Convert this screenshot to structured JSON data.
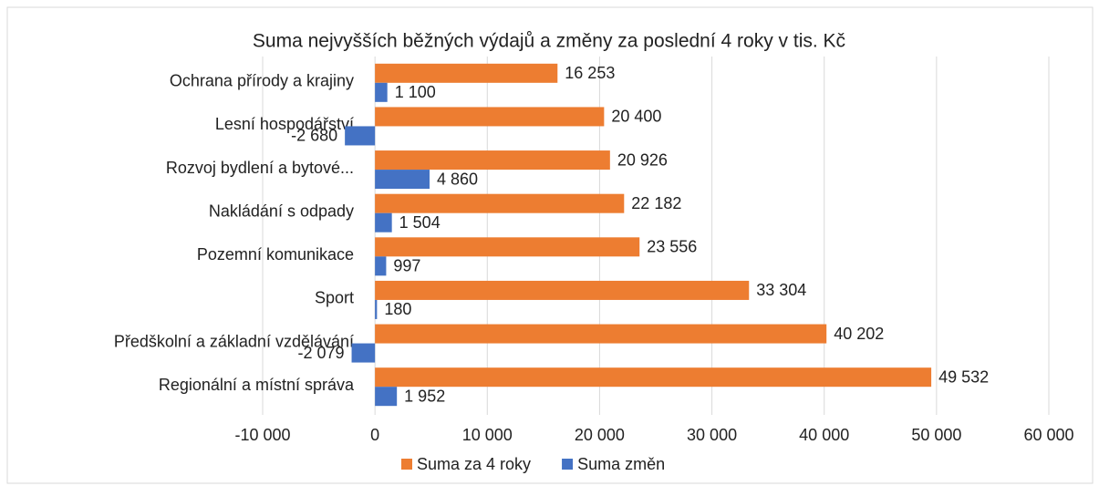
{
  "chart_data": {
    "type": "hbar",
    "title": "Suma nejvyšších běžných výdajů a změny za poslední 4 roky v tis. Kč",
    "categories": [
      "Ochrana přírody a krajiny",
      "Lesní hospodářství",
      "Rozvoj bydlení a bytové...",
      "Nakládání s odpady",
      "Pozemní komunikace",
      "Sport",
      "Předškolní a základní vzdělávání",
      "Regionální a místní správa"
    ],
    "series": [
      {
        "name": "Suma za 4 roky",
        "color": "#ed7d31",
        "values": [
          16253,
          20400,
          20926,
          22182,
          23556,
          33304,
          40202,
          49532
        ],
        "value_labels": [
          "16 253",
          "20 400",
          "20 926",
          "22 182",
          "23 556",
          "33 304",
          "40 202",
          "49 532"
        ]
      },
      {
        "name": "Suma změn",
        "color": "#4472c4",
        "values": [
          1100,
          -2680,
          4860,
          1504,
          997,
          180,
          -2079,
          1952
        ],
        "value_labels": [
          "1 100",
          "-2 680",
          "4 860",
          "1 504",
          "997",
          "180",
          "-2 079",
          "1 952"
        ]
      }
    ],
    "xlim": [
      -10000,
      60000
    ],
    "xticks": [
      {
        "value": -10000,
        "label": "-10 000"
      },
      0,
      {
        "value": 10000,
        "label": "10 000"
      },
      {
        "value": 20000,
        "label": "20 000"
      },
      {
        "value": 30000,
        "label": "30 000"
      },
      {
        "value": 40000,
        "label": "40 000"
      },
      {
        "value": 50000,
        "label": "50 000"
      },
      {
        "value": 60000,
        "label": "60 000"
      }
    ],
    "grid": true,
    "legend": "bottom"
  }
}
